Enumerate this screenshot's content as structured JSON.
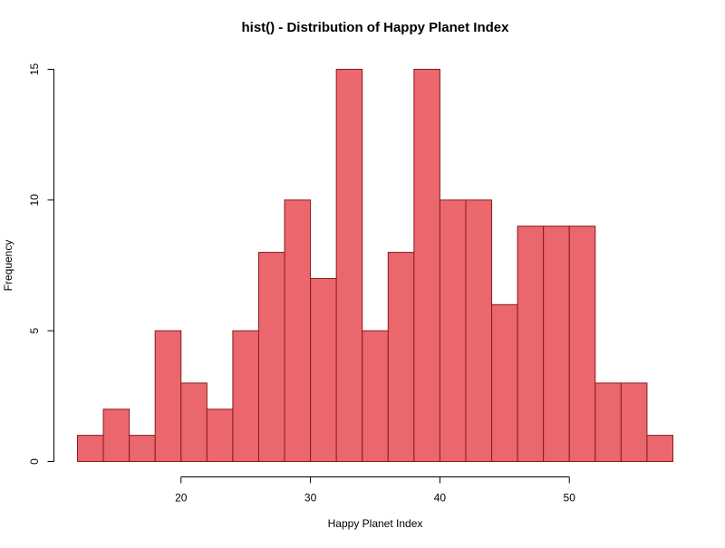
{
  "chart_data": {
    "type": "bar",
    "title": "hist() - Distribution of Happy Planet Index",
    "xlabel": "Happy Planet Index",
    "ylabel": "Frequency",
    "bins": [
      {
        "start": 12,
        "end": 14,
        "count": 1
      },
      {
        "start": 14,
        "end": 16,
        "count": 2
      },
      {
        "start": 16,
        "end": 18,
        "count": 1
      },
      {
        "start": 18,
        "end": 20,
        "count": 5
      },
      {
        "start": 20,
        "end": 22,
        "count": 3
      },
      {
        "start": 22,
        "end": 24,
        "count": 2
      },
      {
        "start": 24,
        "end": 26,
        "count": 5
      },
      {
        "start": 26,
        "end": 28,
        "count": 8
      },
      {
        "start": 28,
        "end": 30,
        "count": 10
      },
      {
        "start": 30,
        "end": 32,
        "count": 7
      },
      {
        "start": 32,
        "end": 34,
        "count": 15
      },
      {
        "start": 34,
        "end": 36,
        "count": 5
      },
      {
        "start": 36,
        "end": 38,
        "count": 8
      },
      {
        "start": 38,
        "end": 40,
        "count": 15
      },
      {
        "start": 40,
        "end": 42,
        "count": 10
      },
      {
        "start": 42,
        "end": 44,
        "count": 10
      },
      {
        "start": 44,
        "end": 46,
        "count": 6
      },
      {
        "start": 46,
        "end": 48,
        "count": 9
      },
      {
        "start": 48,
        "end": 50,
        "count": 9
      },
      {
        "start": 50,
        "end": 52,
        "count": 9
      },
      {
        "start": 52,
        "end": 54,
        "count": 3
      },
      {
        "start": 54,
        "end": 56,
        "count": 3
      },
      {
        "start": 56,
        "end": 58,
        "count": 1
      }
    ],
    "xlim": [
      12,
      58
    ],
    "ylim": [
      0,
      15
    ],
    "x_ticks": [
      20,
      30,
      40,
      50
    ],
    "y_ticks": [
      0,
      5,
      10,
      15
    ],
    "grid": false,
    "legend": "none",
    "bar_fill": "#E9676D",
    "bar_stroke": "#8B1A1A"
  }
}
